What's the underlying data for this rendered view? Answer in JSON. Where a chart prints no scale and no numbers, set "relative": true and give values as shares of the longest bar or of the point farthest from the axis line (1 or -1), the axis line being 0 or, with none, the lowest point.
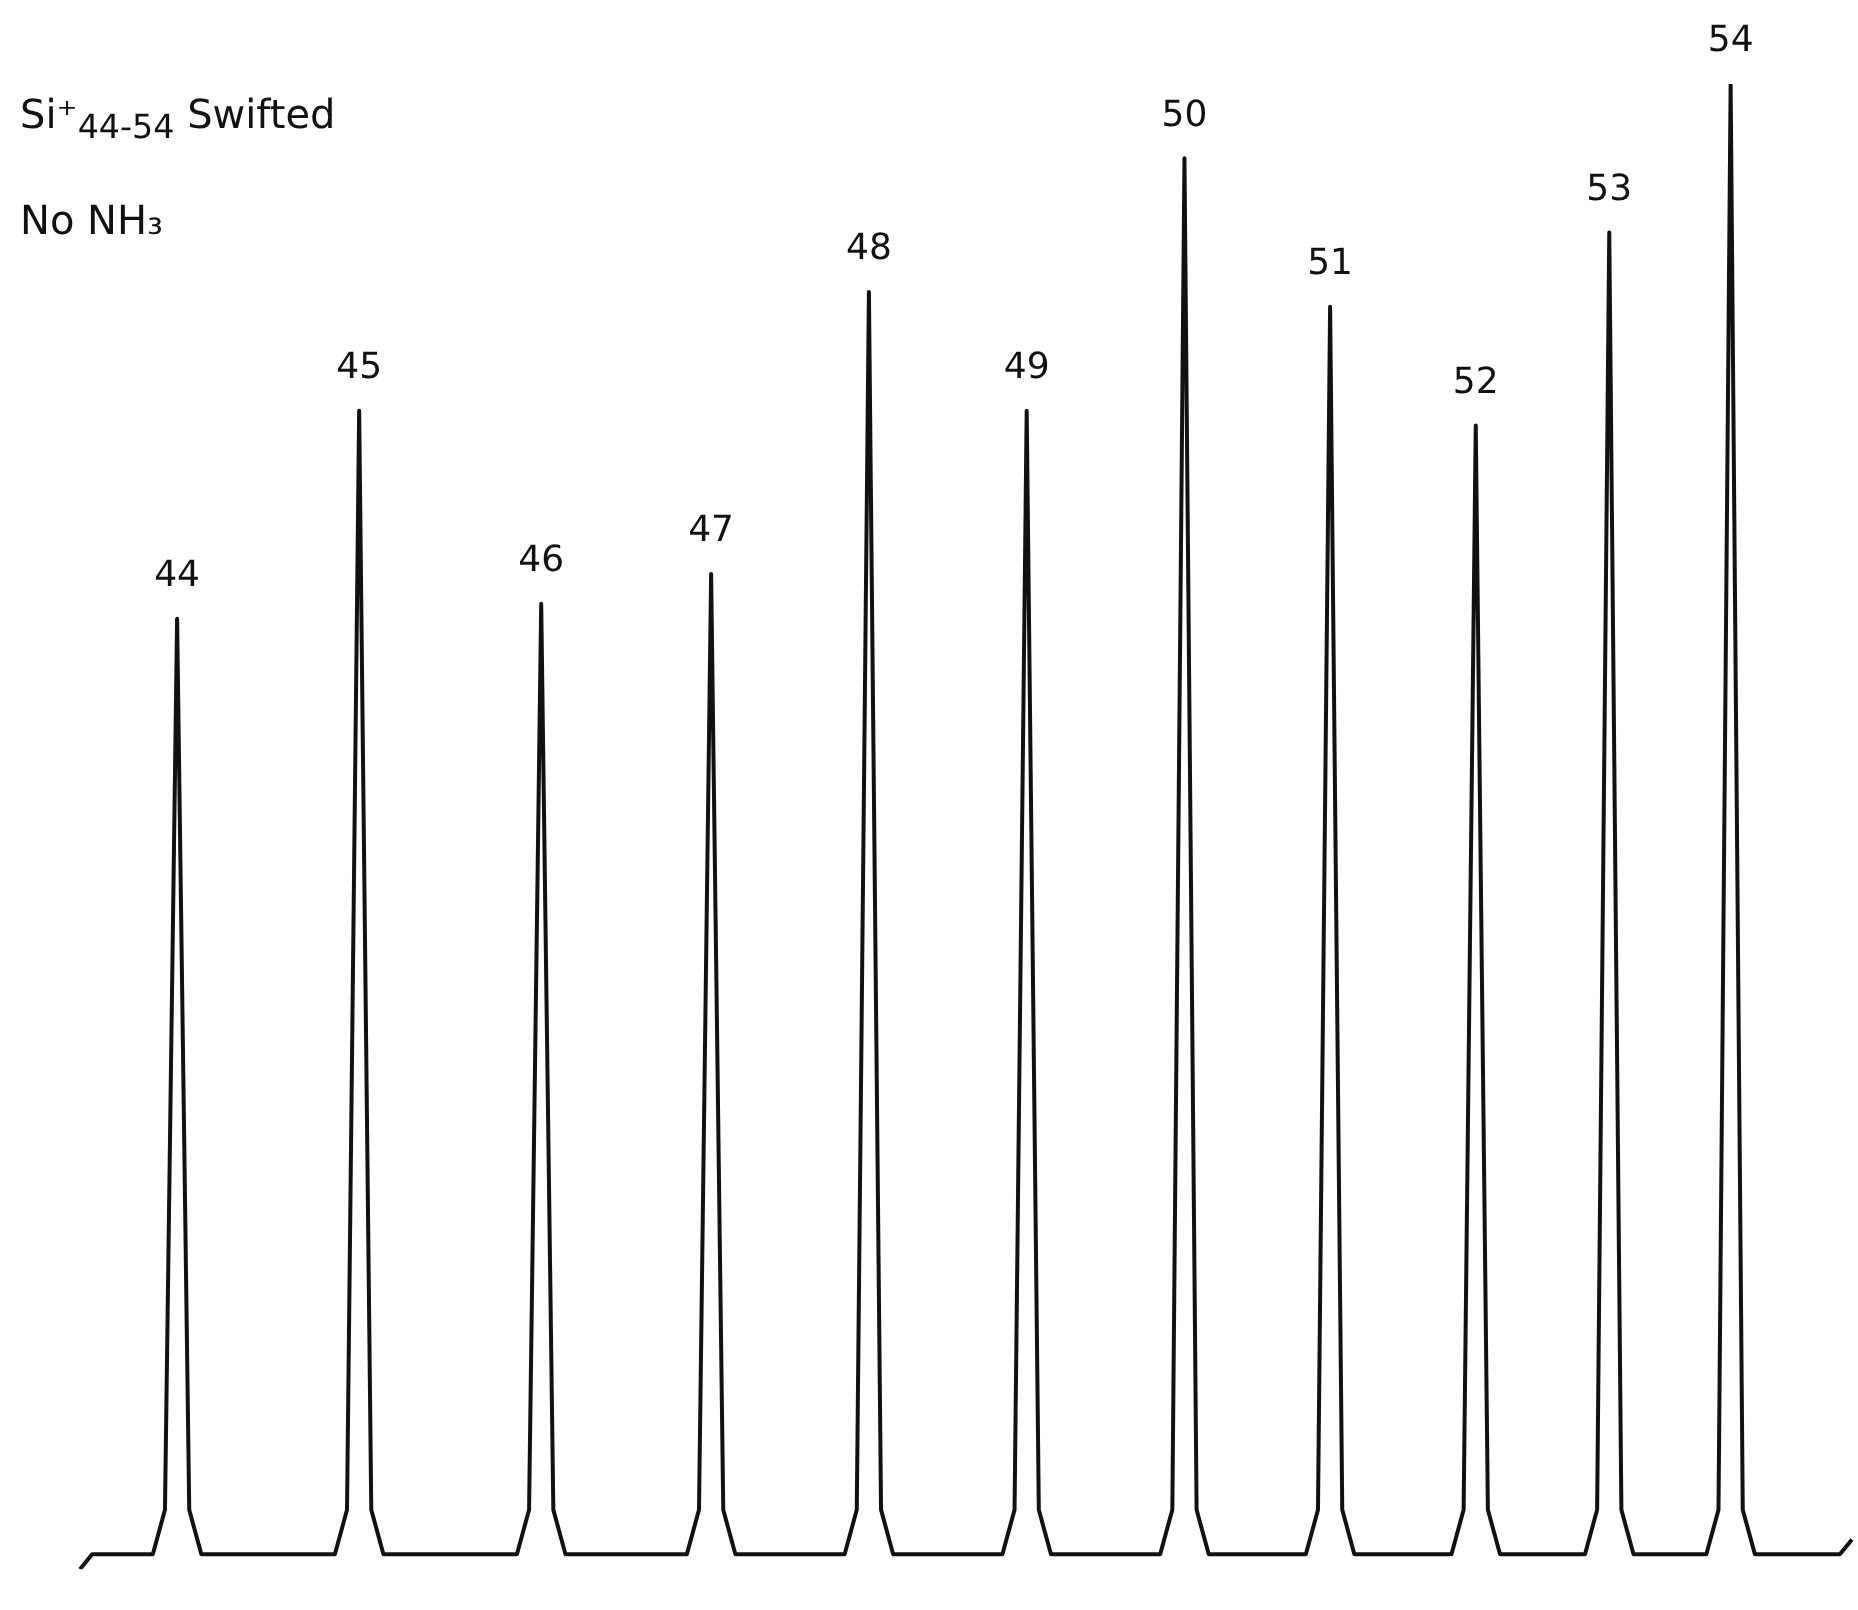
{
  "chart_data": {
    "type": "line",
    "title": "Si⁺$_{44-54}$ Swifted",
    "relative": true,
    "grid": false,
    "marker": "none",
    "color": "#111111",
    "categories": [
      null,
      null,
      null,
      null,
      null,
      null,
      null,
      null,
      null,
      null,
      null,
      null,
      null,
      null,
      null,
      null,
      null,
      null,
      null,
      null,
      null,
      null,
      null,
      null,
      null,
      null,
      null,
      null,
      null,
      null,
      null,
      null,
      null,
      null,
      null,
      null,
      null,
      null,
      null,
      null,
      null,
      null,
      null,
      null,
      null,
      null,
      null,
      null,
      null,
      null,
      null,
      null,
      null,
      null,
      null,
      null,
      null,
      null,
      null,
      null,
      null,
      null,
      null,
      null,
      null,
      null,
      null,
      null,
      null,
      null,
      null,
      null,
      null,
      null,
      null,
      null,
      null,
      null,
      null,
      null,
      null,
      null,
      null,
      null,
      null,
      null,
      null,
      null,
      null,
      null,
      null,
      null,
      null,
      null,
      null,
      null,
      null,
      null,
      null,
      null,
      null,
      null,
      null,
      null,
      null,
      null,
      null,
      null,
      null,
      null,
      null,
      null,
      null,
      null,
      null,
      null,
      null,
      null,
      null,
      null,
      null,
      null,
      null,
      null,
      null,
      null,
      null,
      null,
      null,
      null,
      null,
      null,
      null,
      null,
      null,
      null,
      null,
      null,
      null,
      null,
      null,
      null,
      null,
      null,
      null,
      null,
      null
    ],
    "values": [
      0,
      0.01,
      0.01,
      0.01,
      0.01,
      0.01,
      0.01,
      0.04,
      0.64,
      0.04,
      0.01,
      0.01,
      0.01,
      0.01,
      0.01,
      0.01,
      0.01,
      0.01,
      0.01,
      0.01,
      0.01,
      0.01,
      0.04,
      0.78,
      0.04,
      0.01,
      0.01,
      0.01,
      0.01,
      0.01,
      0.01,
      0.01,
      0.01,
      0.01,
      0.01,
      0.01,
      0.01,
      0.04,
      0.65,
      0.04,
      0.01,
      0.01,
      0.01,
      0.01,
      0.01,
      0.01,
      0.01,
      0.01,
      0.01,
      0.01,
      0.01,
      0.04,
      0.67,
      0.04,
      0.01,
      0.01,
      0.01,
      0.01,
      0.01,
      0.01,
      0.01,
      0.01,
      0.01,
      0.01,
      0.04,
      0.86,
      0.04,
      0.01,
      0.01,
      0.01,
      0.01,
      0.01,
      0.01,
      0.01,
      0.01,
      0.01,
      0.01,
      0.04,
      0.78,
      0.04,
      0.01,
      0.01,
      0.01,
      0.01,
      0.01,
      0.01,
      0.01,
      0.01,
      0.01,
      0.01,
      0.04,
      0.95,
      0.04,
      0.01,
      0.01,
      0.01,
      0.01,
      0.01,
      0.01,
      0.01,
      0.01,
      0.01,
      0.04,
      0.85,
      0.04,
      0.01,
      0.01,
      0.01,
      0.01,
      0.01,
      0.01,
      0.01,
      0.01,
      0.01,
      0.04,
      0.77,
      0.04,
      0.01,
      0.01,
      0.01,
      0.01,
      0.01,
      0.01,
      0.01,
      0.01,
      0.04,
      0.9,
      0.04,
      0.01,
      0.01,
      0.01,
      0.01,
      0.01,
      0.01,
      0.01,
      0.04,
      1.0,
      0.04,
      0.01,
      0.01,
      0.01,
      0.01,
      0.01,
      0.01,
      0.01,
      0.01,
      0.02
    ],
    "annotations": [
      "No NH₃",
      {
        "text": "44",
        "y": 0.64
      },
      {
        "text": "45",
        "y": 0.78
      },
      {
        "text": "46",
        "y": 0.65
      },
      {
        "text": "47",
        "y": 0.67
      },
      {
        "text": "48",
        "y": 0.86
      },
      {
        "text": "49",
        "y": 0.78
      },
      {
        "text": "50",
        "y": 0.95
      },
      {
        "text": "51",
        "y": 0.85
      },
      {
        "text": "52",
        "y": 0.77
      },
      {
        "text": "53",
        "y": 0.9
      },
      {
        "text": "54",
        "y": 1.0
      }
    ]
  }
}
